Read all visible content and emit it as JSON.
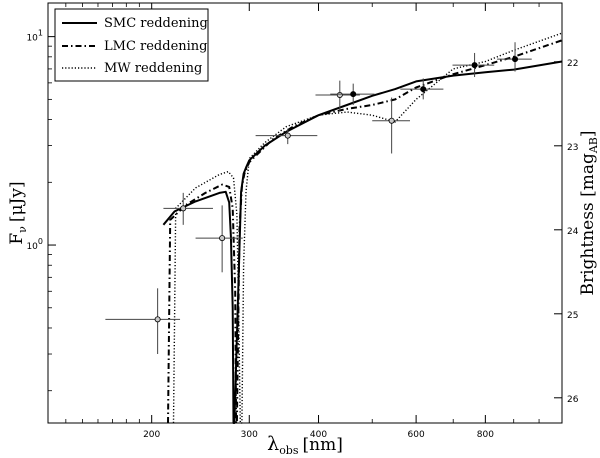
{
  "chart_data": {
    "type": "line",
    "xlabel": "λ",
    "xlabel_sub": "obs",
    "xlabel_unit": "[nm]",
    "ylabel": "F",
    "ylabel_sub": "ν",
    "ylabel_unit": "[μJy]",
    "y2label": "Brightness [mag",
    "y2label_sub": "AB",
    "y2label_end": "]",
    "x_scale": "log",
    "y_scale": "log",
    "xlim": [
      130,
      1100
    ],
    "ylim": [
      0.14,
      14.5
    ],
    "y2lim": [
      26.3,
      21.3
    ],
    "x_ticks": [
      200,
      300,
      400,
      600,
      800
    ],
    "x_tick_labels": [
      "200",
      "300",
      "400",
      "600",
      "800"
    ],
    "y_ticks": [
      1,
      10
    ],
    "y_tick_labels_base": [
      "10",
      "10"
    ],
    "y_tick_labels_exp": [
      "0",
      "1"
    ],
    "y2_ticks": [
      22,
      23,
      24,
      25,
      26
    ],
    "y2_tick_labels": [
      "22",
      "23",
      "24",
      "25",
      "26"
    ],
    "legend_position": "top-left",
    "series": [
      {
        "name": "SMC reddening",
        "style": "solid",
        "x": [
          210,
          220,
          240,
          265,
          272,
          276,
          278,
          280,
          281,
          282,
          290,
          293,
          296,
          300,
          320,
          350,
          400,
          450,
          500,
          550,
          600,
          700,
          800,
          900,
          1100
        ],
        "y": [
          1.25,
          1.45,
          1.62,
          1.78,
          1.8,
          1.6,
          1.1,
          0.5,
          0.14,
          0.14,
          1.8,
          2.2,
          2.35,
          2.55,
          3.0,
          3.5,
          4.2,
          4.7,
          5.2,
          5.6,
          6.1,
          6.5,
          6.75,
          6.95,
          7.6
        ]
      },
      {
        "name": "LMC reddening",
        "style": "dashdot",
        "x": [
          214,
          216,
          230,
          250,
          268,
          276,
          280,
          283,
          284,
          285,
          288,
          291,
          294,
          297,
          300,
          330,
          360,
          400,
          450,
          500,
          550,
          600,
          700,
          800,
          900,
          1100
        ],
        "y": [
          0.14,
          1.32,
          1.55,
          1.78,
          1.95,
          1.9,
          1.5,
          0.6,
          0.14,
          0.14,
          1.2,
          1.9,
          2.2,
          2.35,
          2.5,
          3.2,
          3.7,
          4.2,
          4.5,
          4.7,
          5.0,
          5.7,
          6.6,
          7.3,
          8.0,
          9.6
        ]
      },
      {
        "name": "MW reddening",
        "style": "dotted",
        "x": [
          219,
          221,
          240,
          265,
          275,
          281,
          285,
          287,
          289,
          291,
          293,
          296,
          300,
          320,
          350,
          400,
          450,
          500,
          550,
          600,
          700,
          800,
          900,
          1100
        ],
        "y": [
          0.14,
          1.5,
          1.88,
          2.18,
          2.25,
          2.1,
          1.4,
          0.5,
          0.14,
          0.14,
          0.8,
          1.8,
          2.6,
          3.1,
          3.7,
          4.2,
          4.35,
          4.2,
          3.9,
          5.0,
          7.0,
          7.6,
          8.6,
          10.4
        ]
      }
    ],
    "data_points": [
      {
        "x": 205,
        "y": 0.44,
        "xerr": [
          165,
          225
        ],
        "yerr": [
          0.3,
          0.62
        ],
        "filled": false
      },
      {
        "x": 228,
        "y": 1.5,
        "xerr": [
          210,
          258
        ],
        "yerr": [
          1.25,
          1.78
        ],
        "filled": false
      },
      {
        "x": 268,
        "y": 1.08,
        "xerr": [
          240,
          292
        ],
        "yerr": [
          0.74,
          1.55
        ],
        "filled": false
      },
      {
        "x": 352,
        "y": 3.35,
        "xerr": [
          308,
          398
        ],
        "yerr": [
          3.05,
          3.62
        ],
        "filled": false
      },
      {
        "x": 437,
        "y": 5.25,
        "xerr": [
          395,
          475
        ],
        "yerr": [
          4.4,
          6.15
        ],
        "filled": false
      },
      {
        "x": 462,
        "y": 5.3,
        "xerr": [
          420,
          505
        ],
        "yerr": [
          4.7,
          5.95
        ],
        "filled": true
      },
      {
        "x": 542,
        "y": 3.95,
        "xerr": [
          500,
          585
        ],
        "yerr": [
          2.75,
          5.1
        ],
        "filled": false
      },
      {
        "x": 618,
        "y": 5.6,
        "xerr": [
          562,
          672
        ],
        "yerr": [
          5.0,
          6.3
        ],
        "filled": true
      },
      {
        "x": 765,
        "y": 7.3,
        "xerr": [
          698,
          830
        ],
        "yerr": [
          6.4,
          8.35
        ],
        "filled": true
      },
      {
        "x": 905,
        "y": 7.8,
        "xerr": [
          840,
          970
        ],
        "yerr": [
          6.8,
          9.4
        ],
        "filled": true
      }
    ]
  }
}
